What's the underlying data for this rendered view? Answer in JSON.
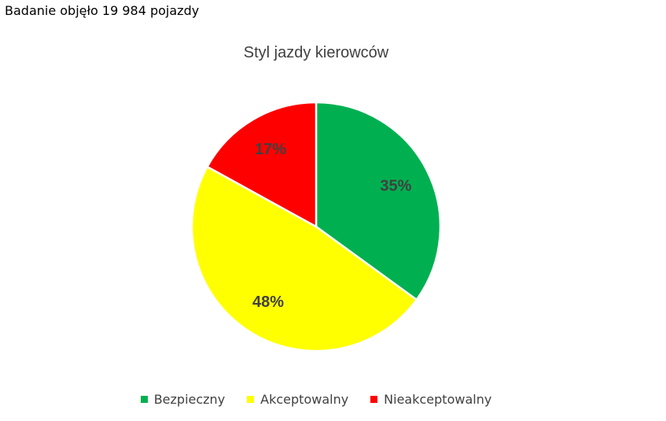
{
  "header_note": "Badanie objęło 19 984 pojazdy",
  "chart_data": {
    "type": "pie",
    "title": "Styl jazdy kierowców",
    "categories": [
      "Bezpieczny",
      "Akceptowalny",
      "Nieakceptowalny"
    ],
    "values": [
      35,
      48,
      17
    ],
    "labels": [
      "35%",
      "48%",
      "17%"
    ],
    "colors": [
      "#00b050",
      "#ffff00",
      "#ff0000"
    ],
    "start_angle": "12 o'clock",
    "direction": "clockwise",
    "legend_position": "bottom"
  },
  "legend": {
    "items": [
      {
        "label": "Bezpieczny",
        "color": "#00b050"
      },
      {
        "label": "Akceptowalny",
        "color": "#ffff00"
      },
      {
        "label": "Nieakceptowalny",
        "color": "#ff0000"
      }
    ]
  }
}
